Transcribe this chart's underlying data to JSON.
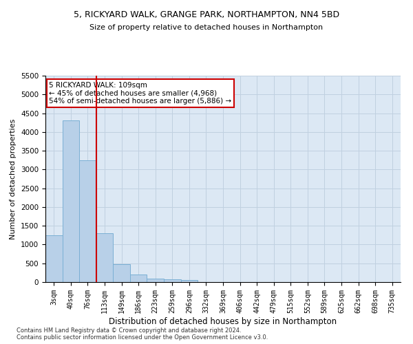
{
  "title_line1": "5, RICKYARD WALK, GRANGE PARK, NORTHAMPTON, NN4 5BD",
  "title_line2": "Size of property relative to detached houses in Northampton",
  "xlabel": "Distribution of detached houses by size in Northampton",
  "ylabel": "Number of detached properties",
  "footnote": "Contains HM Land Registry data © Crown copyright and database right 2024.\nContains public sector information licensed under the Open Government Licence v3.0.",
  "bar_labels": [
    "3sqm",
    "40sqm",
    "76sqm",
    "113sqm",
    "149sqm",
    "186sqm",
    "223sqm",
    "259sqm",
    "296sqm",
    "332sqm",
    "369sqm",
    "406sqm",
    "442sqm",
    "479sqm",
    "515sqm",
    "552sqm",
    "589sqm",
    "625sqm",
    "662sqm",
    "698sqm",
    "735sqm"
  ],
  "bar_values": [
    1250,
    4300,
    3250,
    1300,
    470,
    200,
    100,
    70,
    50,
    0,
    0,
    0,
    0,
    0,
    0,
    0,
    0,
    0,
    0,
    0,
    0
  ],
  "bar_color": "#b8d0e8",
  "bar_edge_color": "#7aafd4",
  "property_line_x": 2.5,
  "property_line_color": "#cc0000",
  "annotation_text": "5 RICKYARD WALK: 109sqm\n← 45% of detached houses are smaller (4,968)\n54% of semi-detached houses are larger (5,886) →",
  "annotation_box_color": "#ffffff",
  "annotation_box_edge": "#cc0000",
  "ylim": [
    0,
    5500
  ],
  "yticks": [
    0,
    500,
    1000,
    1500,
    2000,
    2500,
    3000,
    3500,
    4000,
    4500,
    5000,
    5500
  ],
  "background_color": "#ffffff",
  "grid_color": "#c0d0e0",
  "ax_facecolor": "#dce8f4"
}
